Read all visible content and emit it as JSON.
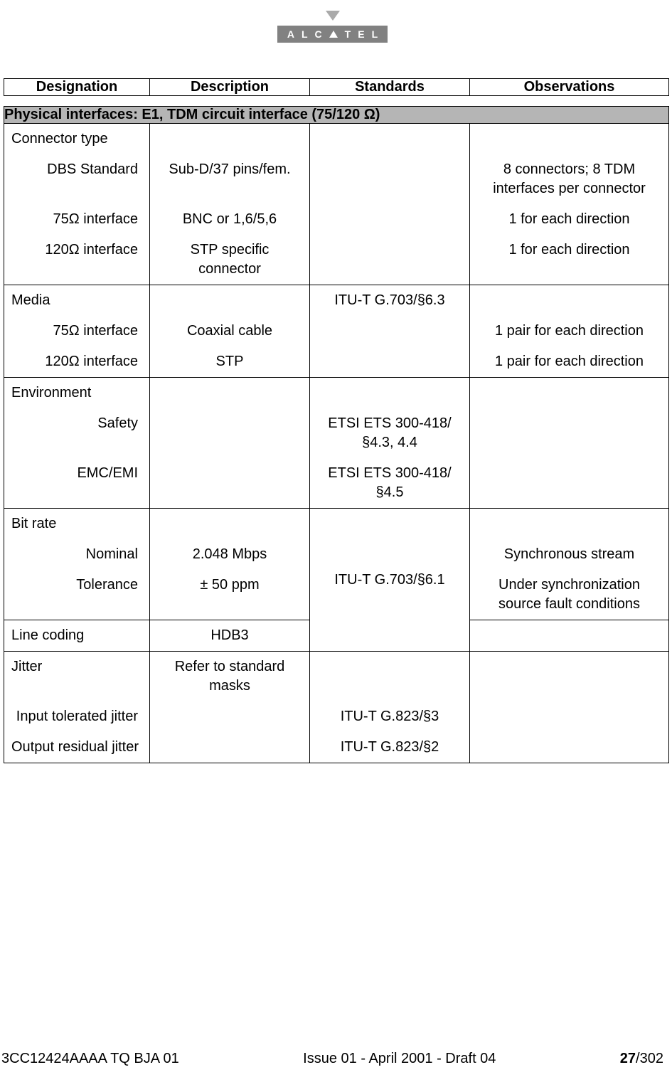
{
  "logo": {
    "letters": [
      "A",
      "L",
      "C",
      "A",
      "T",
      "E",
      "L"
    ]
  },
  "columns": {
    "widths": [
      205,
      225,
      225,
      280
    ],
    "headers": [
      "Designation",
      "Description",
      "Standards",
      "Observations"
    ]
  },
  "section_title": "Physical interfaces: E1, TDM circuit interface (75/120 Ω)",
  "groups": [
    {
      "rows": [
        {
          "c1": "Connector type",
          "c1_align": "left",
          "c2": "",
          "c3": "",
          "c4": ""
        },
        {
          "c1": "DBS Standard",
          "c1_align": "right",
          "c2": "Sub-D/37 pins/fem.",
          "c3": "",
          "c4": "8 connectors; 8 TDM interfaces per connector"
        },
        {
          "c1": "75Ω interface",
          "c1_align": "right",
          "c2": "BNC or 1,6/5,6",
          "c3": "",
          "c4": "1 for each direction"
        },
        {
          "c1": "120Ω interface",
          "c1_align": "right",
          "c2": "STP specific connector",
          "c3": "",
          "c4": "1 for each direction"
        }
      ]
    },
    {
      "rows": [
        {
          "c1": "Media",
          "c1_align": "left",
          "c2": "",
          "c3": "ITU-T G.703/§6.3",
          "c4": ""
        },
        {
          "c1": "75Ω interface",
          "c1_align": "right",
          "c2": "Coaxial cable",
          "c3": "",
          "c4": "1 pair for each direction"
        },
        {
          "c1": "120Ω interface",
          "c1_align": "right",
          "c2": "STP",
          "c3": "",
          "c4": "1 pair for each direction"
        }
      ]
    },
    {
      "rows": [
        {
          "c1": "Environment",
          "c1_align": "left",
          "c2": "",
          "c3": "",
          "c4": ""
        },
        {
          "c1": "Safety",
          "c1_align": "right",
          "c2": "",
          "c3": "ETSI ETS 300-418/§4.3, 4.4",
          "c4": ""
        },
        {
          "c1": "EMC/EMI",
          "c1_align": "right",
          "c2": "",
          "c3": "ETSI ETS 300-418/§4.5",
          "c4": ""
        }
      ]
    },
    {
      "merged_c3": "ITU-T G.703/§6.1",
      "rows": [
        {
          "c1": "Bit rate",
          "c1_align": "left",
          "c2": "",
          "c4": ""
        },
        {
          "c1": "Nominal",
          "c1_align": "right",
          "c2": "2.048 Mbps",
          "c4": "Synchronous stream"
        },
        {
          "c1": "Tolerance",
          "c1_align": "right",
          "c2": "± 50 ppm",
          "c4": "Under synchronization source fault conditions"
        }
      ],
      "extra_row": {
        "c1": "Line coding",
        "c1_align": "left",
        "c2": "HDB3",
        "c4": ""
      }
    },
    {
      "rows": [
        {
          "c1": "Jitter",
          "c1_align": "left",
          "c2": "Refer to standard masks",
          "c3": "",
          "c4": ""
        },
        {
          "c1": "Input tolerated jitter",
          "c1_align": "right",
          "c2": "",
          "c3": "ITU-T G.823/§3",
          "c4": ""
        },
        {
          "c1": "Output residual jitter",
          "c1_align": "left",
          "c2": "",
          "c3": "ITU-T G.823/§2",
          "c4": ""
        }
      ]
    }
  ],
  "footer": {
    "left": "3CC12424AAAA TQ BJA 01",
    "center": "Issue 01 - April 2001 - Draft 04",
    "page_current": "27",
    "page_total": "/302"
  }
}
